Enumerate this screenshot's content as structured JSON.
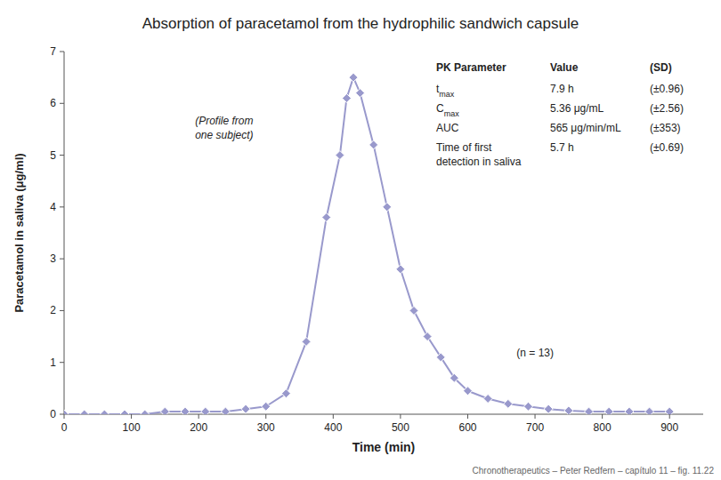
{
  "chart_data": {
    "type": "line",
    "title": "Absorption of paracetamol from the hydrophilic sandwich capsule",
    "x_label": "Time (min)",
    "y_label": "Paracetamol in saliva (μg/ml)",
    "x": [
      0,
      30,
      60,
      90,
      120,
      150,
      180,
      210,
      240,
      270,
      300,
      330,
      360,
      390,
      410,
      420,
      430,
      440,
      460,
      480,
      500,
      520,
      540,
      560,
      580,
      600,
      630,
      660,
      690,
      720,
      750,
      780,
      810,
      840,
      870,
      900
    ],
    "values": [
      0.0,
      0.0,
      0.0,
      0.0,
      0.0,
      0.05,
      0.05,
      0.05,
      0.05,
      0.1,
      0.15,
      0.4,
      1.4,
      3.8,
      5.0,
      6.1,
      6.5,
      6.2,
      5.2,
      4.0,
      2.8,
      2.0,
      1.5,
      1.1,
      0.7,
      0.45,
      0.3,
      0.2,
      0.15,
      0.1,
      0.07,
      0.05,
      0.05,
      0.05,
      0.05,
      0.05
    ],
    "color": "#9999CC",
    "marker": "diamond",
    "xlim": [
      0,
      950
    ],
    "ylim": [
      0,
      7
    ],
    "xticks": [
      0,
      100,
      200,
      300,
      400,
      500,
      600,
      700,
      800,
      900
    ],
    "yticks": [
      0,
      1,
      2,
      3,
      4,
      5,
      6,
      7
    ],
    "grid": false,
    "annotations": [
      "(Profile from",
      "one subject)",
      "(n = 13)"
    ],
    "table": {
      "headers": [
        "PK Parameter",
        "Value",
        "(SD)"
      ],
      "rows": [
        {
          "label": [
            "t"
          ],
          "sub": "max",
          "value": "7.9 h",
          "sd": "(±0.96)"
        },
        {
          "label": [
            "C"
          ],
          "sub": "max",
          "value": "5.36 μg/mL",
          "sd": "(±2.56)"
        },
        {
          "label": [
            "AUC"
          ],
          "value": "565 μg/min/mL",
          "sd": "(±353)"
        },
        {
          "label": [
            "Time of first",
            "detection in saliva"
          ],
          "value": "5.7 h",
          "sd": "(±0.69)"
        }
      ]
    },
    "footnote": "Chronotherapeutics – Peter Redfern – capítulo 11 – fig. 11.22"
  }
}
